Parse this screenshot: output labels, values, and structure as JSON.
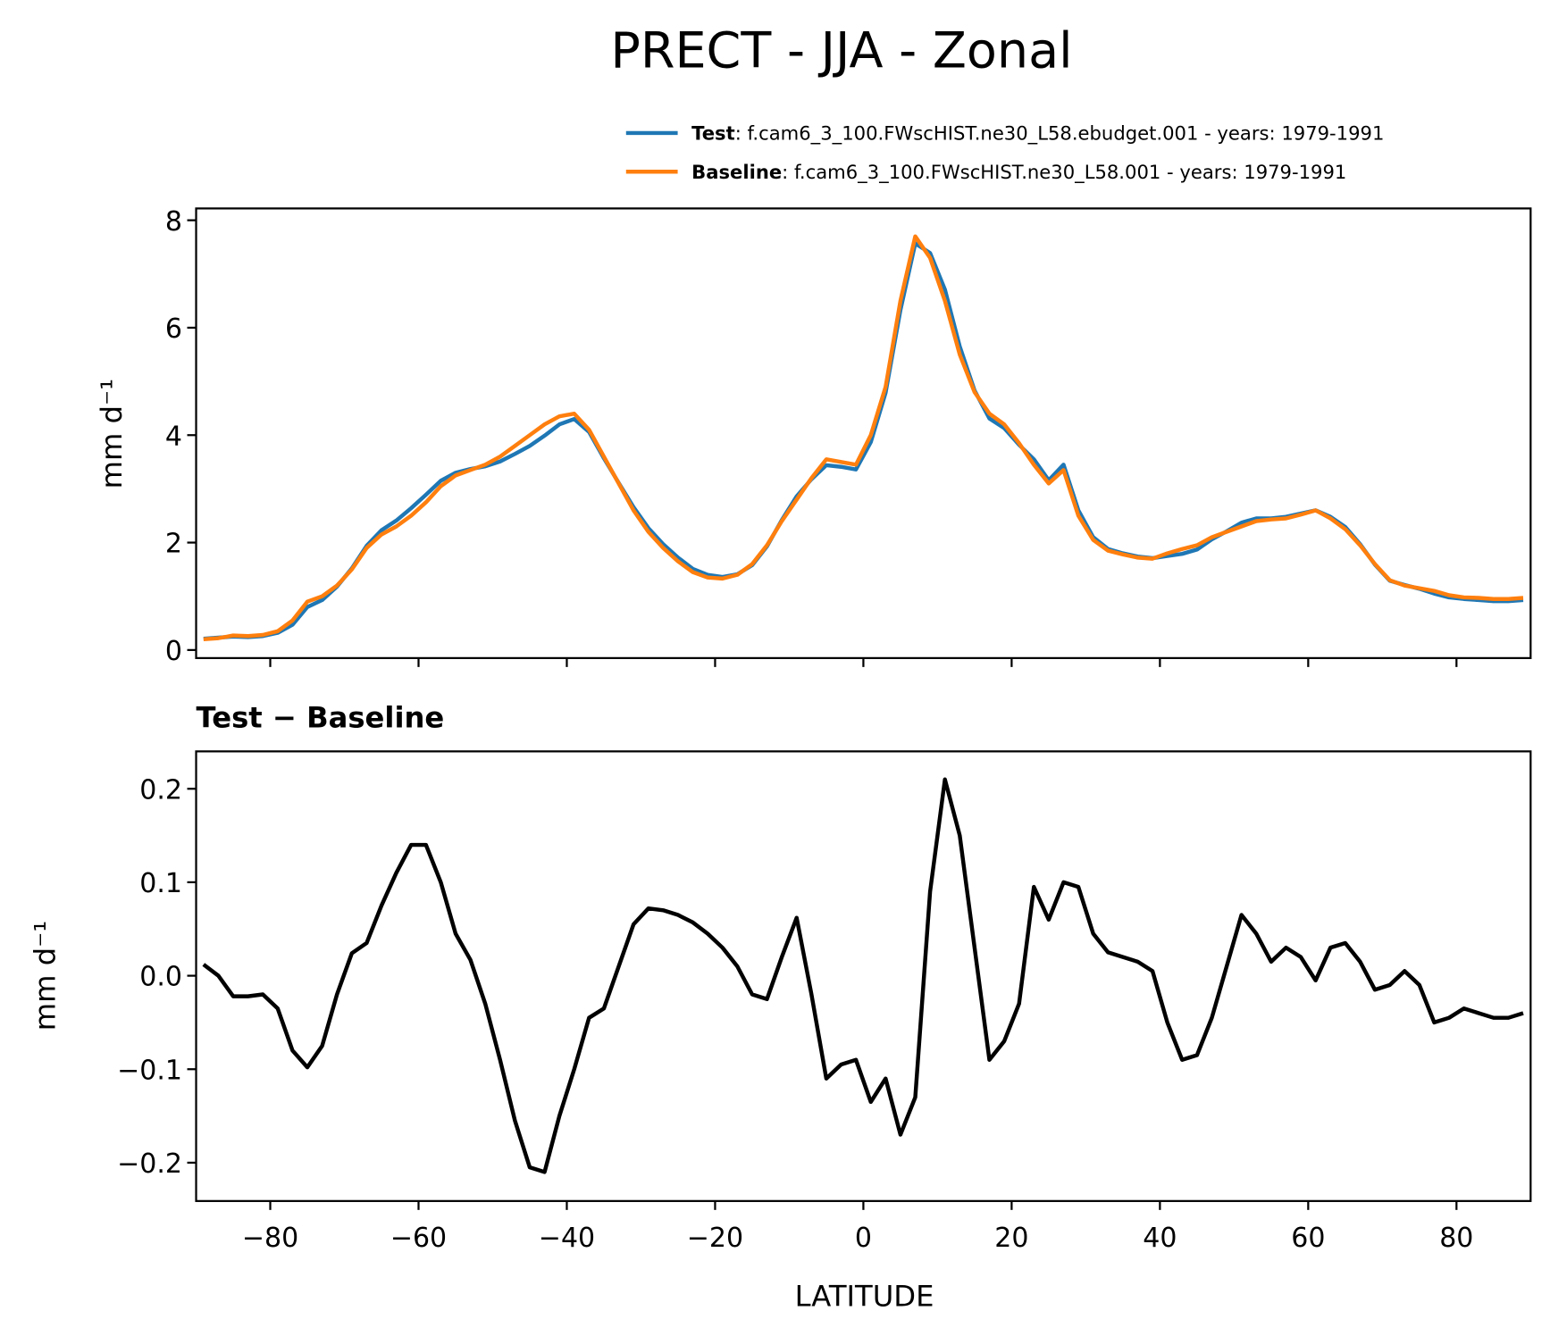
{
  "chart_data": [
    {
      "type": "line",
      "title": "PRECT - JJA - Zonal",
      "ylabel": "mm d⁻¹",
      "x": [
        -89,
        -87,
        -85,
        -83,
        -81,
        -79,
        -77,
        -75,
        -73,
        -71,
        -69,
        -67,
        -65,
        -63,
        -61,
        -59,
        -57,
        -55,
        -53,
        -51,
        -49,
        -47,
        -45,
        -43,
        -41,
        -39,
        -37,
        -35,
        -33,
        -31,
        -29,
        -27,
        -25,
        -23,
        -21,
        -19,
        -17,
        -15,
        -13,
        -11,
        -9,
        -7,
        -5,
        -3,
        -1,
        1,
        3,
        5,
        7,
        9,
        11,
        13,
        15,
        17,
        19,
        21,
        23,
        25,
        27,
        29,
        31,
        33,
        35,
        37,
        39,
        41,
        43,
        45,
        47,
        49,
        51,
        53,
        55,
        57,
        59,
        61,
        63,
        65,
        67,
        69,
        71,
        73,
        75,
        77,
        79,
        81,
        83,
        85,
        87,
        89
      ],
      "series": [
        {
          "name": "Test",
          "description": ": f.cam6_3_100.FWscHIST.ne30_L58.ebudget.001 - years: 1979-1991",
          "color": "#1f77b4",
          "values": [
            0.21,
            0.23,
            0.25,
            0.24,
            0.26,
            0.32,
            0.47,
            0.8,
            0.93,
            1.18,
            1.52,
            1.94,
            2.23,
            2.41,
            2.64,
            2.89,
            3.15,
            3.3,
            3.37,
            3.42,
            3.51,
            3.65,
            3.8,
            3.99,
            4.2,
            4.3,
            4.06,
            3.57,
            3.11,
            2.66,
            2.27,
            1.97,
            1.72,
            1.51,
            1.4,
            1.36,
            1.41,
            1.58,
            1.93,
            2.42,
            2.86,
            3.18,
            3.44,
            3.41,
            3.36,
            3.87,
            4.79,
            6.33,
            7.57,
            7.39,
            6.71,
            5.65,
            4.83,
            4.31,
            4.13,
            3.82,
            3.55,
            3.16,
            3.45,
            2.6,
            2.1,
            1.88,
            1.8,
            1.74,
            1.71,
            1.75,
            1.79,
            1.87,
            2.06,
            2.21,
            2.37,
            2.45,
            2.45,
            2.48,
            2.54,
            2.6,
            2.48,
            2.29,
            1.97,
            1.59,
            1.29,
            1.21,
            1.14,
            1.05,
            0.98,
            0.95,
            0.93,
            0.91,
            0.91,
            0.93
          ]
        },
        {
          "name": "Baseline",
          "description": ": f.cam6_3_100.FWscHIST.ne30_L58.001 - years: 1979-1991",
          "color": "#ff7f0e",
          "values": [
            0.2,
            0.22,
            0.27,
            0.26,
            0.28,
            0.35,
            0.55,
            0.9,
            1.0,
            1.2,
            1.5,
            1.9,
            2.15,
            2.3,
            2.5,
            2.75,
            3.05,
            3.25,
            3.35,
            3.45,
            3.6,
            3.8,
            4.0,
            4.2,
            4.35,
            4.4,
            4.1,
            3.6,
            3.1,
            2.6,
            2.2,
            1.9,
            1.65,
            1.45,
            1.35,
            1.33,
            1.4,
            1.6,
            1.95,
            2.4,
            2.8,
            3.2,
            3.55,
            3.5,
            3.45,
            4.0,
            4.9,
            6.5,
            7.7,
            7.3,
            6.5,
            5.5,
            4.8,
            4.4,
            4.2,
            3.85,
            3.45,
            3.1,
            3.35,
            2.5,
            2.05,
            1.85,
            1.78,
            1.72,
            1.7,
            1.8,
            1.88,
            1.95,
            2.1,
            2.2,
            2.3,
            2.4,
            2.43,
            2.45,
            2.52,
            2.6,
            2.45,
            2.25,
            1.95,
            1.6,
            1.3,
            1.2,
            1.15,
            1.1,
            1.02,
            0.98,
            0.97,
            0.95,
            0.95,
            0.97
          ]
        }
      ],
      "xlim": [
        -90,
        90
      ],
      "xticks": [
        -80,
        -60,
        -40,
        -20,
        0,
        20,
        40,
        60,
        80
      ],
      "ylim": [
        -0.15,
        8.22
      ],
      "yticks": [
        0,
        2,
        4,
        6,
        8
      ],
      "legend": "upper right"
    },
    {
      "type": "line",
      "title": "Test − Baseline",
      "xlabel": "LATITUDE",
      "ylabel": "mm d⁻¹",
      "x": [
        -89,
        -87,
        -85,
        -83,
        -81,
        -79,
        -77,
        -75,
        -73,
        -71,
        -69,
        -67,
        -65,
        -63,
        -61,
        -59,
        -57,
        -55,
        -53,
        -51,
        -49,
        -47,
        -45,
        -43,
        -41,
        -39,
        -37,
        -35,
        -33,
        -31,
        -29,
        -27,
        -25,
        -23,
        -21,
        -19,
        -17,
        -15,
        -13,
        -11,
        -9,
        -7,
        -5,
        -3,
        -1,
        1,
        3,
        5,
        7,
        9,
        11,
        13,
        15,
        17,
        19,
        21,
        23,
        25,
        27,
        29,
        31,
        33,
        35,
        37,
        39,
        41,
        43,
        45,
        47,
        49,
        51,
        53,
        55,
        57,
        59,
        61,
        63,
        65,
        67,
        69,
        71,
        73,
        75,
        77,
        79,
        81,
        83,
        85,
        87,
        89
      ],
      "series": [
        {
          "color": "#000000",
          "values": [
            0.012,
            0.0,
            -0.022,
            -0.022,
            -0.02,
            -0.035,
            -0.08,
            -0.098,
            -0.075,
            -0.02,
            0.024,
            0.035,
            0.075,
            0.11,
            0.14,
            0.14,
            0.1,
            0.045,
            0.017,
            -0.03,
            -0.09,
            -0.155,
            -0.205,
            -0.21,
            -0.15,
            -0.1,
            -0.045,
            -0.035,
            0.01,
            0.055,
            0.072,
            0.07,
            0.065,
            0.057,
            0.045,
            0.03,
            0.01,
            -0.02,
            -0.025,
            0.02,
            0.062,
            -0.02,
            -0.11,
            -0.095,
            -0.09,
            -0.135,
            -0.11,
            -0.17,
            -0.13,
            0.09,
            0.21,
            0.15,
            0.03,
            -0.09,
            -0.07,
            -0.03,
            0.095,
            0.06,
            0.1,
            0.095,
            0.045,
            0.025,
            0.02,
            0.015,
            0.005,
            -0.05,
            -0.09,
            -0.085,
            -0.045,
            0.01,
            0.065,
            0.045,
            0.015,
            0.03,
            0.02,
            -0.005,
            0.03,
            0.035,
            0.015,
            -0.015,
            -0.01,
            0.005,
            -0.01,
            -0.05,
            -0.045,
            -0.035,
            -0.04,
            -0.045,
            -0.045,
            -0.04
          ]
        }
      ],
      "xlim": [
        -90,
        90
      ],
      "xticks": [
        {
          "value": -80,
          "label": "−80"
        },
        {
          "value": -60,
          "label": "−60"
        },
        {
          "value": -40,
          "label": "−40"
        },
        {
          "value": -20,
          "label": "−20"
        },
        0,
        20,
        40,
        60,
        80
      ],
      "ylim": [
        -0.241,
        0.24
      ],
      "yticks": [
        {
          "value": -0.2,
          "label": "−0.2"
        },
        {
          "value": -0.1,
          "label": "−0.1"
        },
        {
          "value": 0,
          "label": "0.0"
        },
        0.1,
        0.2
      ]
    }
  ]
}
